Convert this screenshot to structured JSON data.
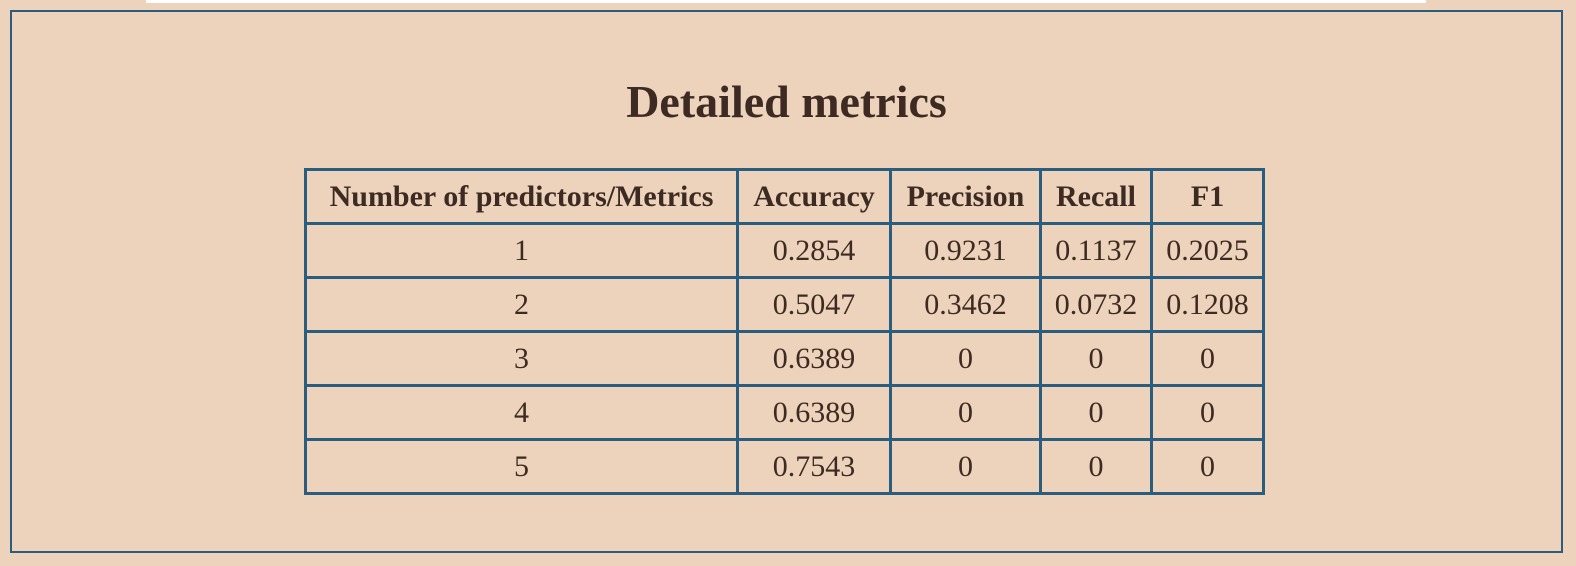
{
  "title": "Detailed metrics",
  "table": {
    "headers": [
      "Number of predictors/Metrics",
      "Accuracy",
      "Precision",
      "Recall",
      "F1"
    ],
    "rows": [
      [
        "1",
        "0.2854",
        "0.9231",
        "0.1137",
        "0.2025"
      ],
      [
        "2",
        "0.5047",
        "0.3462",
        "0.0732",
        "0.1208"
      ],
      [
        "3",
        "0.6389",
        "0",
        "0",
        "0"
      ],
      [
        "4",
        "0.6389",
        "0",
        "0",
        "0"
      ],
      [
        "5",
        "0.7543",
        "0",
        "0",
        "0"
      ]
    ]
  },
  "colors": {
    "background": "#edd3bb",
    "border": "#2b5e7e",
    "text": "#3d2a22"
  }
}
